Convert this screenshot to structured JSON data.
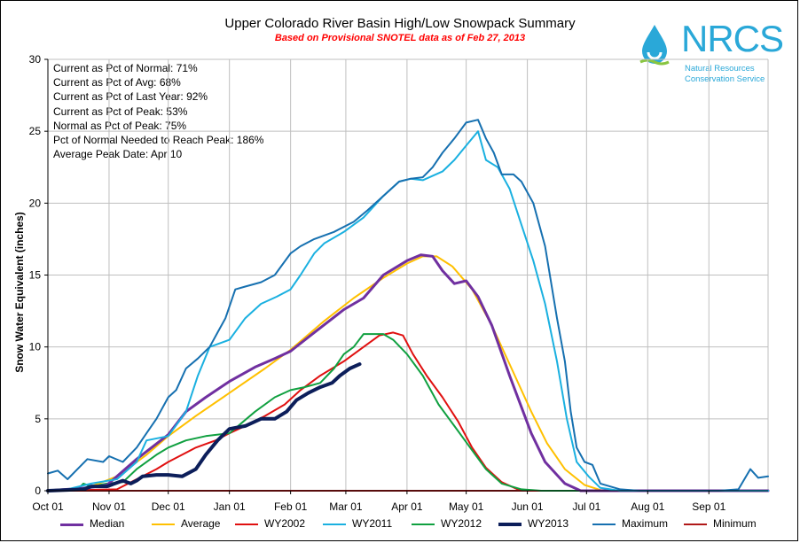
{
  "chart_data": {
    "type": "line",
    "title": "Upper Colorado River Basin High/Low Snowpack Summary",
    "subtitle": "Based on Provisional SNOTEL data as of Feb 27, 2013",
    "ylabel": "Snow Water Equivalent (inches)",
    "xlabel": "",
    "ylim": [
      0,
      30
    ],
    "yticks": [
      0,
      5,
      10,
      15,
      20,
      25,
      30
    ],
    "xticks": [
      "Oct 01",
      "Nov 01",
      "Dec 01",
      "Jan 01",
      "Feb 01",
      "Mar 01",
      "Apr 01",
      "May 01",
      "Jun 01",
      "Jul 01",
      "Aug 01",
      "Sep 01"
    ],
    "x_unit": "day of water year (Oct 01 = 0)",
    "grid": true,
    "legend_position": "bottom",
    "series": [
      {
        "name": "Median",
        "color": "#7030a0",
        "width": 3,
        "points": [
          [
            0,
            0
          ],
          [
            20,
            0.2
          ],
          [
            30,
            0.4
          ],
          [
            45,
            2.2
          ],
          [
            61,
            3.9
          ],
          [
            70,
            5.5
          ],
          [
            80,
            6.5
          ],
          [
            92,
            7.6
          ],
          [
            105,
            8.6
          ],
          [
            115,
            9.2
          ],
          [
            123,
            9.7
          ],
          [
            135,
            11.0
          ],
          [
            150,
            12.6
          ],
          [
            160,
            13.4
          ],
          [
            170,
            15.0
          ],
          [
            182,
            16.0
          ],
          [
            189,
            16.4
          ],
          [
            195,
            16.3
          ],
          [
            200,
            15.3
          ],
          [
            206,
            14.4
          ],
          [
            212,
            14.6
          ],
          [
            218,
            13.5
          ],
          [
            225,
            11.5
          ],
          [
            234,
            8.0
          ],
          [
            245,
            4.0
          ],
          [
            252,
            2.0
          ],
          [
            262,
            0.5
          ],
          [
            270,
            0
          ],
          [
            365,
            0
          ]
        ]
      },
      {
        "name": "Average",
        "color": "#ffc000",
        "width": 2,
        "points": [
          [
            0,
            0
          ],
          [
            20,
            0.2
          ],
          [
            35,
            1.0
          ],
          [
            50,
            2.5
          ],
          [
            61,
            3.8
          ],
          [
            75,
            5.2
          ],
          [
            92,
            6.8
          ],
          [
            110,
            8.5
          ],
          [
            123,
            9.8
          ],
          [
            140,
            11.8
          ],
          [
            155,
            13.4
          ],
          [
            170,
            14.8
          ],
          [
            182,
            15.8
          ],
          [
            190,
            16.3
          ],
          [
            197,
            16.3
          ],
          [
            205,
            15.6
          ],
          [
            215,
            14.0
          ],
          [
            225,
            11.5
          ],
          [
            235,
            8.5
          ],
          [
            245,
            5.5
          ],
          [
            253,
            3.3
          ],
          [
            262,
            1.5
          ],
          [
            272,
            0.4
          ],
          [
            280,
            0.05
          ],
          [
            290,
            0
          ],
          [
            365,
            0
          ]
        ]
      },
      {
        "name": "WY2002",
        "color": "#e01010",
        "width": 2,
        "points": [
          [
            0,
            0
          ],
          [
            35,
            0.1
          ],
          [
            45,
            0.8
          ],
          [
            55,
            1.5
          ],
          [
            61,
            2.0
          ],
          [
            68,
            2.5
          ],
          [
            75,
            3.0
          ],
          [
            85,
            3.5
          ],
          [
            92,
            4.0
          ],
          [
            100,
            4.5
          ],
          [
            110,
            5.2
          ],
          [
            120,
            6.0
          ],
          [
            128,
            7.0
          ],
          [
            138,
            8.0
          ],
          [
            150,
            9.0
          ],
          [
            160,
            10.0
          ],
          [
            168,
            10.8
          ],
          [
            175,
            11.0
          ],
          [
            180,
            10.8
          ],
          [
            185,
            9.5
          ],
          [
            192,
            8.0
          ],
          [
            200,
            6.5
          ],
          [
            208,
            4.8
          ],
          [
            215,
            3.0
          ],
          [
            222,
            1.6
          ],
          [
            230,
            0.6
          ],
          [
            238,
            0.1
          ],
          [
            245,
            0
          ],
          [
            365,
            0
          ]
        ]
      },
      {
        "name": "WY2011",
        "color": "#1ab0e0",
        "width": 2,
        "points": [
          [
            0,
            0
          ],
          [
            10,
            0.1
          ],
          [
            22,
            0.5
          ],
          [
            35,
            0.8
          ],
          [
            45,
            2.0
          ],
          [
            50,
            3.5
          ],
          [
            61,
            3.8
          ],
          [
            70,
            5.5
          ],
          [
            76,
            8.0
          ],
          [
            82,
            10.0
          ],
          [
            92,
            10.5
          ],
          [
            100,
            12.0
          ],
          [
            108,
            13.0
          ],
          [
            116,
            13.5
          ],
          [
            123,
            14.0
          ],
          [
            128,
            15.0
          ],
          [
            135,
            16.5
          ],
          [
            140,
            17.2
          ],
          [
            150,
            18.0
          ],
          [
            160,
            19.0
          ],
          [
            170,
            20.5
          ],
          [
            178,
            21.5
          ],
          [
            184,
            21.7
          ],
          [
            190,
            21.6
          ],
          [
            200,
            22.2
          ],
          [
            206,
            23.0
          ],
          [
            212,
            24.0
          ],
          [
            218,
            25.0
          ],
          [
            222,
            23.0
          ],
          [
            228,
            22.5
          ],
          [
            234,
            21.0
          ],
          [
            240,
            18.5
          ],
          [
            246,
            16.0
          ],
          [
            252,
            13.0
          ],
          [
            258,
            9.0
          ],
          [
            263,
            5.0
          ],
          [
            268,
            2.0
          ],
          [
            274,
            1.0
          ],
          [
            280,
            0.2
          ],
          [
            290,
            0
          ],
          [
            365,
            0
          ]
        ]
      },
      {
        "name": "WY2012",
        "color": "#10a040",
        "width": 2,
        "points": [
          [
            0,
            0
          ],
          [
            15,
            0.1
          ],
          [
            18,
            0.5
          ],
          [
            22,
            0.3
          ],
          [
            30,
            0.5
          ],
          [
            38,
            0.6
          ],
          [
            45,
            1.5
          ],
          [
            55,
            2.5
          ],
          [
            61,
            3.0
          ],
          [
            70,
            3.5
          ],
          [
            80,
            3.8
          ],
          [
            92,
            4.0
          ],
          [
            105,
            5.5
          ],
          [
            115,
            6.5
          ],
          [
            123,
            7.0
          ],
          [
            130,
            7.2
          ],
          [
            138,
            7.5
          ],
          [
            145,
            8.5
          ],
          [
            150,
            9.5
          ],
          [
            155,
            10.0
          ],
          [
            160,
            10.9
          ],
          [
            170,
            10.9
          ],
          [
            175,
            10.5
          ],
          [
            182,
            9.5
          ],
          [
            190,
            8.0
          ],
          [
            198,
            6.0
          ],
          [
            206,
            4.5
          ],
          [
            214,
            3.0
          ],
          [
            222,
            1.5
          ],
          [
            230,
            0.5
          ],
          [
            240,
            0.1
          ],
          [
            250,
            0
          ],
          [
            365,
            0
          ]
        ]
      },
      {
        "name": "WY2013",
        "color": "#0c1e5a",
        "width": 4,
        "points": [
          [
            0,
            0
          ],
          [
            18,
            0.1
          ],
          [
            22,
            0.3
          ],
          [
            30,
            0.3
          ],
          [
            38,
            0.7
          ],
          [
            42,
            0.5
          ],
          [
            45,
            0.7
          ],
          [
            48,
            1.0
          ],
          [
            55,
            1.1
          ],
          [
            61,
            1.1
          ],
          [
            68,
            1.0
          ],
          [
            75,
            1.5
          ],
          [
            80,
            2.5
          ],
          [
            86,
            3.5
          ],
          [
            92,
            4.3
          ],
          [
            100,
            4.5
          ],
          [
            108,
            5.0
          ],
          [
            115,
            5.0
          ],
          [
            121,
            5.5
          ],
          [
            126,
            6.3
          ],
          [
            132,
            6.8
          ],
          [
            138,
            7.2
          ],
          [
            144,
            7.5
          ],
          [
            148,
            8.0
          ],
          [
            153,
            8.5
          ],
          [
            158,
            8.8
          ]
        ]
      },
      {
        "name": "Maximum",
        "color": "#1670b0",
        "width": 2,
        "points": [
          [
            0,
            1.2
          ],
          [
            5,
            1.4
          ],
          [
            10,
            0.8
          ],
          [
            15,
            1.5
          ],
          [
            20,
            2.2
          ],
          [
            28,
            2.0
          ],
          [
            31,
            2.4
          ],
          [
            38,
            2.0
          ],
          [
            45,
            3.0
          ],
          [
            50,
            4.0
          ],
          [
            55,
            5.0
          ],
          [
            61,
            6.5
          ],
          [
            65,
            7.0
          ],
          [
            70,
            8.5
          ],
          [
            76,
            9.2
          ],
          [
            82,
            10.0
          ],
          [
            86,
            11.0
          ],
          [
            90,
            12.0
          ],
          [
            95,
            14.0
          ],
          [
            100,
            14.2
          ],
          [
            108,
            14.5
          ],
          [
            115,
            15.0
          ],
          [
            123,
            16.5
          ],
          [
            128,
            17.0
          ],
          [
            135,
            17.5
          ],
          [
            145,
            18.0
          ],
          [
            155,
            18.7
          ],
          [
            162,
            19.5
          ],
          [
            170,
            20.5
          ],
          [
            178,
            21.5
          ],
          [
            184,
            21.7
          ],
          [
            190,
            21.8
          ],
          [
            195,
            22.5
          ],
          [
            200,
            23.5
          ],
          [
            206,
            24.5
          ],
          [
            212,
            25.6
          ],
          [
            218,
            25.8
          ],
          [
            222,
            24.5
          ],
          [
            226,
            23.5
          ],
          [
            230,
            22.0
          ],
          [
            236,
            22.0
          ],
          [
            240,
            21.5
          ],
          [
            246,
            20.0
          ],
          [
            252,
            17.0
          ],
          [
            258,
            12.0
          ],
          [
            262,
            9.0
          ],
          [
            265,
            5.5
          ],
          [
            268,
            3.0
          ],
          [
            272,
            2.0
          ],
          [
            276,
            1.8
          ],
          [
            280,
            0.5
          ],
          [
            290,
            0.1
          ],
          [
            300,
            0
          ],
          [
            340,
            0
          ],
          [
            350,
            0.1
          ],
          [
            356,
            1.5
          ],
          [
            360,
            0.9
          ],
          [
            365,
            1.0
          ]
        ]
      },
      {
        "name": "Minimum",
        "color": "#b01818",
        "width": 2,
        "points": [
          [
            0,
            0
          ],
          [
            365,
            0
          ]
        ]
      }
    ]
  },
  "stats": [
    "Current as Pct of Normal: 71%",
    "Current as Pct of Avg: 68%",
    "Current as Pct of Last Year: 92%",
    "Current as Pct of Peak: 53%",
    "Normal as Pct of Peak: 75%",
    "Pct of Normal Needed to Reach Peak: 186%",
    "Average Peak Date: Apr 10"
  ],
  "logo": {
    "name": "NRCS",
    "line1": "Natural Resources",
    "line2": "Conservation Service",
    "color": "#2aa8d8"
  }
}
